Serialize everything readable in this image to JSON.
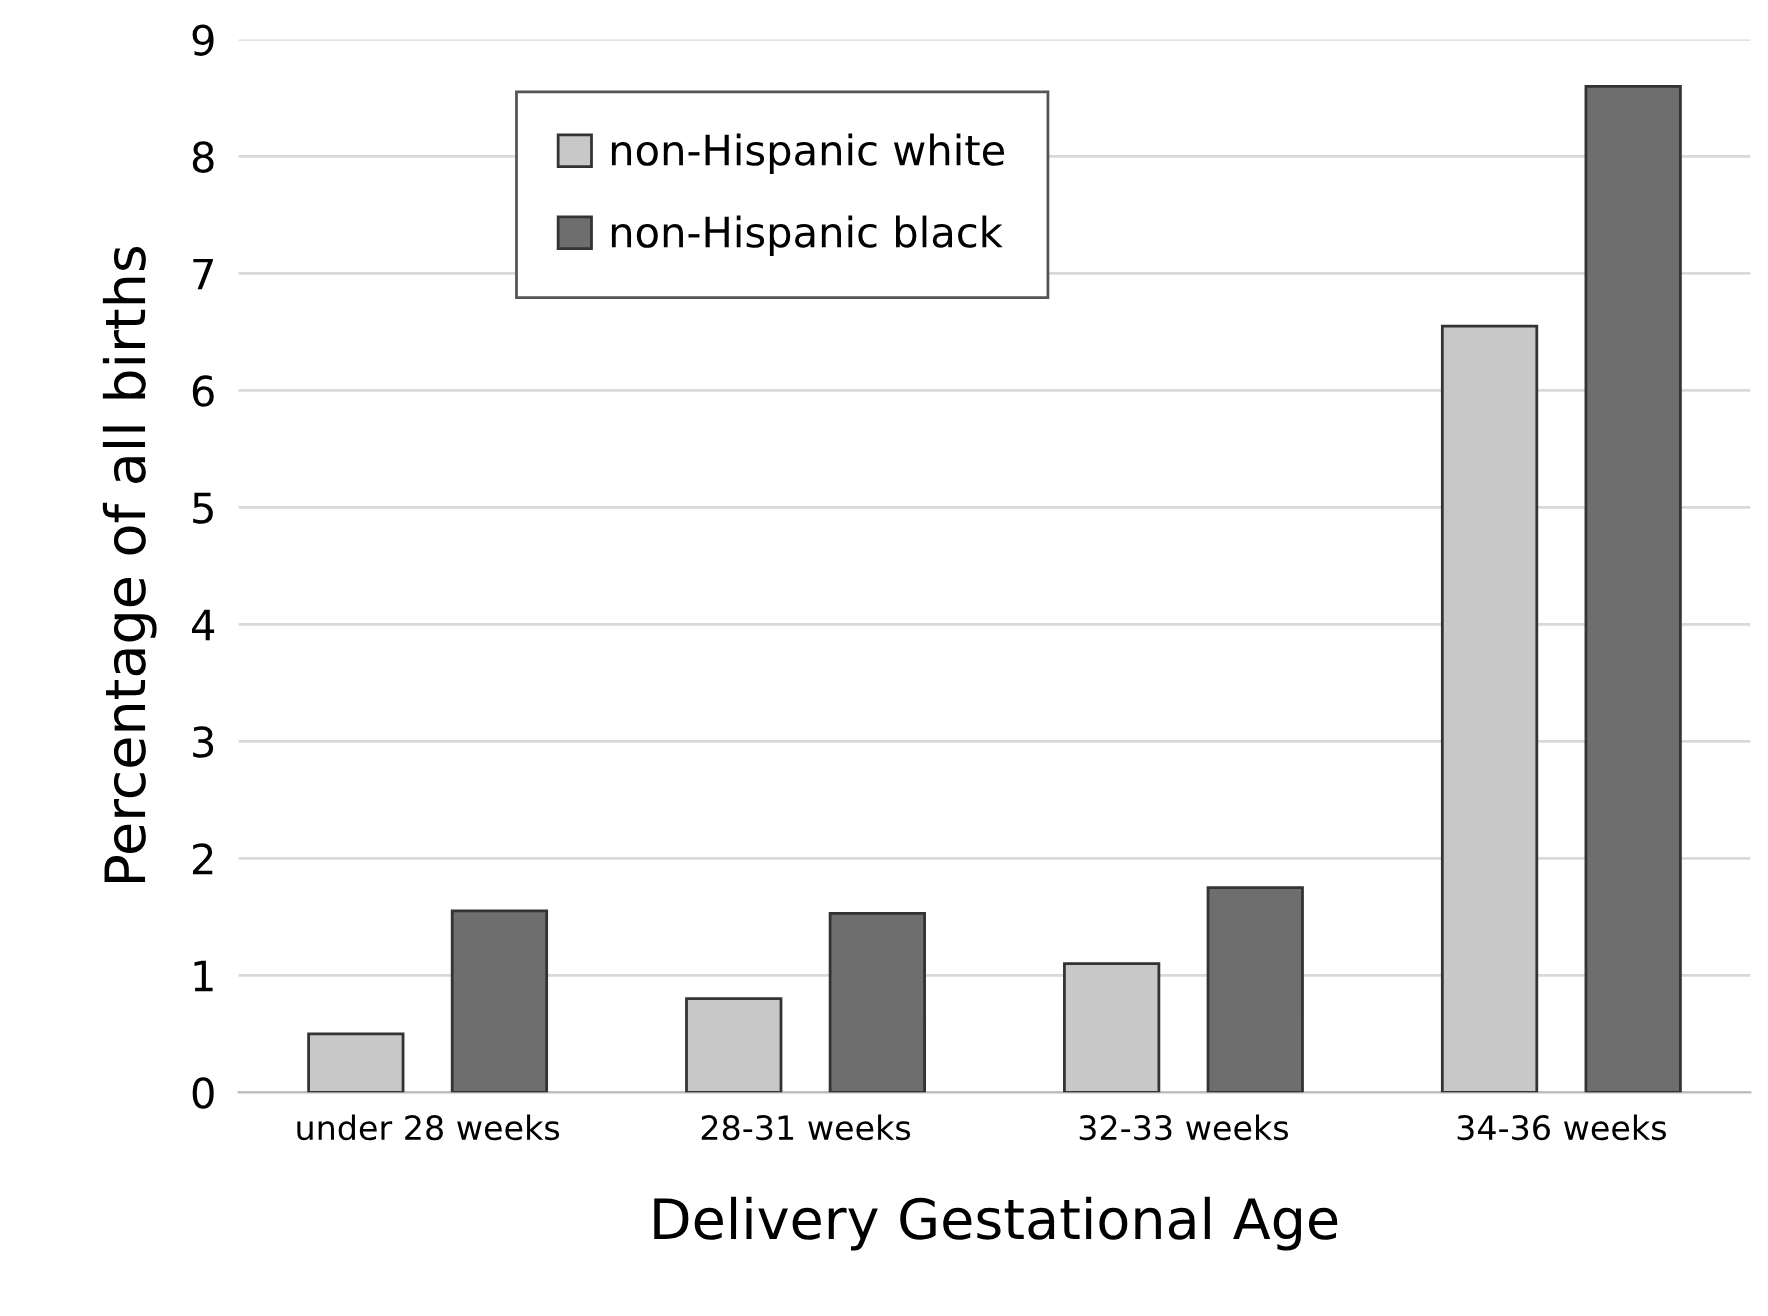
{
  "chart_data": {
    "type": "bar",
    "xlabel": "Delivery Gestational Age",
    "ylabel": "Percentage of all births",
    "categories": [
      "under 28 weeks",
      "28-31 weeks",
      "32-33 weeks",
      "34-36 weeks"
    ],
    "series": [
      {
        "name": "non-Hispanic white",
        "color": "#c8c8c8",
        "values": [
          0.5,
          0.8,
          1.1,
          6.55
        ]
      },
      {
        "name": "non-Hispanic black",
        "color": "#6e6e6e",
        "values": [
          1.55,
          1.53,
          1.75,
          8.6
        ]
      }
    ],
    "ylim": [
      0,
      9
    ],
    "yticks": [
      0,
      1,
      2,
      3,
      4,
      5,
      6,
      7,
      8,
      9
    ],
    "grid": "y",
    "legend": "top left"
  }
}
